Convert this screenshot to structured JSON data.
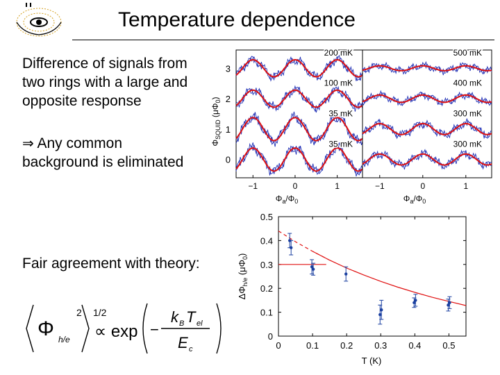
{
  "slide": {
    "title": "Temperature dependence",
    "para1_lines": [
      "Difference of signals from",
      "two rings with a large and",
      "opposite response"
    ],
    "para2_line1": "Any common",
    "para2_line2": "background is eliminated",
    "para3": "Fair agreement with theory:"
  },
  "formula": {
    "phi": "Φ",
    "phi_sub": "h/e",
    "sq": "2",
    "half": "1/2",
    "prop": "∝ exp",
    "numer_k": "k",
    "numer_B": "B",
    "numer_T": "T",
    "numer_el": "el",
    "denom_E": "E",
    "denom_c": "c",
    "minus": "−"
  },
  "colors": {
    "data": "#1f2fb5",
    "fit": "#e01010",
    "errorbars": "#1a3fa0"
  },
  "chart_data": [
    {
      "type": "line",
      "panels": [
        {
          "curves": [
            {
              "name": "200 mK",
              "offset": 3,
              "fit_amplitude": 0.28,
              "noise_amplitude": 0.28
            },
            {
              "name": "100 mK",
              "offset": 2,
              "fit_amplitude": 0.28,
              "noise_amplitude": 0.28
            },
            {
              "name": "35 mK",
              "offset": 1,
              "fit_amplitude": 0.38,
              "noise_amplitude": 0.32
            },
            {
              "name": "35 mK",
              "offset": 0,
              "fit_amplitude": 0.38,
              "noise_amplitude": 0.32
            }
          ],
          "xlabel": "Φa/Φ0",
          "xlim": [
            -1.4,
            1.6
          ],
          "xticks": [
            "−1",
            "0",
            "1"
          ]
        },
        {
          "curves": [
            {
              "name": "500 mK",
              "offset": 3,
              "fit_amplitude": 0.08,
              "noise_amplitude": 0.22
            },
            {
              "name": "400 mK",
              "offset": 2,
              "fit_amplitude": 0.12,
              "noise_amplitude": 0.22
            },
            {
              "name": "300 mK",
              "offset": 1,
              "fit_amplitude": 0.18,
              "noise_amplitude": 0.26
            },
            {
              "name": "300 mK",
              "offset": 0,
              "fit_amplitude": 0.18,
              "noise_amplitude": 0.26
            }
          ],
          "xlabel": "Φa/Φ0",
          "xlim": [
            -1.4,
            1.6
          ],
          "xticks": [
            "−1",
            "0",
            "1"
          ]
        }
      ],
      "ylabel": "ΦSQUID (μΦ0)",
      "ylim": [
        -0.6,
        3.6
      ],
      "yticks": [
        "0",
        "1",
        "2",
        "3"
      ]
    },
    {
      "type": "scatter",
      "xlabel": "T (K)",
      "ylabel": "ΔΦh/e (μΦ0)",
      "xlim": [
        0,
        0.55
      ],
      "ylim": [
        0,
        0.5
      ],
      "xticks": [
        0,
        0.1,
        0.2,
        0.3,
        0.4,
        0.5
      ],
      "yticks": [
        0,
        0.1,
        0.2,
        0.3,
        0.4,
        0.5
      ],
      "points": [
        {
          "x": 0.035,
          "y": 0.4,
          "err": 0.03
        },
        {
          "x": 0.035,
          "y": 0.37,
          "err": 0.03
        },
        {
          "x": 0.1,
          "y": 0.29,
          "err": 0.03
        },
        {
          "x": 0.1,
          "y": 0.28,
          "err": 0.025
        },
        {
          "x": 0.2,
          "y": 0.26,
          "err": 0.03
        },
        {
          "x": 0.3,
          "y": 0.11,
          "err": 0.04
        },
        {
          "x": 0.3,
          "y": 0.09,
          "err": 0.04
        },
        {
          "x": 0.4,
          "y": 0.15,
          "err": 0.025
        },
        {
          "x": 0.4,
          "y": 0.14,
          "err": 0.02
        },
        {
          "x": 0.5,
          "y": 0.14,
          "err": 0.025
        },
        {
          "x": 0.5,
          "y": 0.13,
          "err": 0.025
        }
      ],
      "theory_curve": {
        "x": [
          0,
          0.05,
          0.1,
          0.15,
          0.2,
          0.25,
          0.3,
          0.35,
          0.4,
          0.45,
          0.5,
          0.55
        ],
        "y": [
          0.44,
          0.395,
          0.355,
          0.318,
          0.285,
          0.256,
          0.229,
          0.205,
          0.183,
          0.163,
          0.145,
          0.128
        ],
        "dashed_until": 0.12
      },
      "saturation": {
        "y": 0.3,
        "x_end": 0.14
      }
    }
  ]
}
